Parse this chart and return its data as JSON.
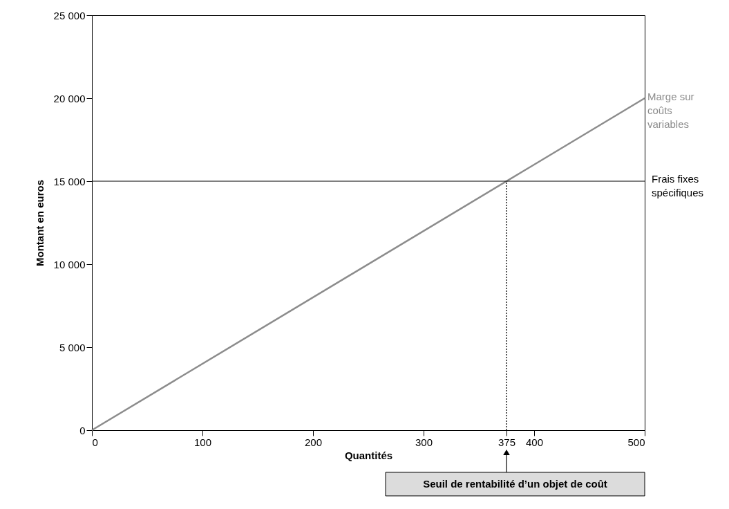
{
  "chart_data": {
    "type": "line",
    "xlabel": "Quantités",
    "ylabel": "Montant en euros",
    "series": [
      {
        "name": "Marge sur coûts variables",
        "color": "#8c8c8c",
        "x": [
          0,
          500
        ],
        "values": [
          0,
          20000
        ]
      },
      {
        "color": "#000000",
        "x": [
          375,
          375
        ],
        "values": [
          0,
          15000
        ],
        "line_style": "dotted"
      }
    ],
    "ref_lines": [
      {
        "axis": "y",
        "value": 15000,
        "label": "Frais fixes spécifiques",
        "color": "#000000"
      }
    ],
    "annotations": [
      "Seuil de rentabilité d’un objet de coût"
    ],
    "xlim": [
      0,
      500
    ],
    "ylim": [
      0,
      25000
    ],
    "xticks": [
      0,
      100,
      200,
      300,
      375,
      400,
      500
    ],
    "yticks": [
      0,
      {
        "value": 5000,
        "label": "5 000"
      },
      {
        "value": 10000,
        "label": "10 000"
      },
      {
        "value": 15000,
        "label": "15 000"
      },
      {
        "value": 20000,
        "label": "20 000"
      },
      {
        "value": 25000,
        "label": "25 000"
      }
    ],
    "grid": false,
    "marker": "none",
    "line_style": "solid"
  }
}
